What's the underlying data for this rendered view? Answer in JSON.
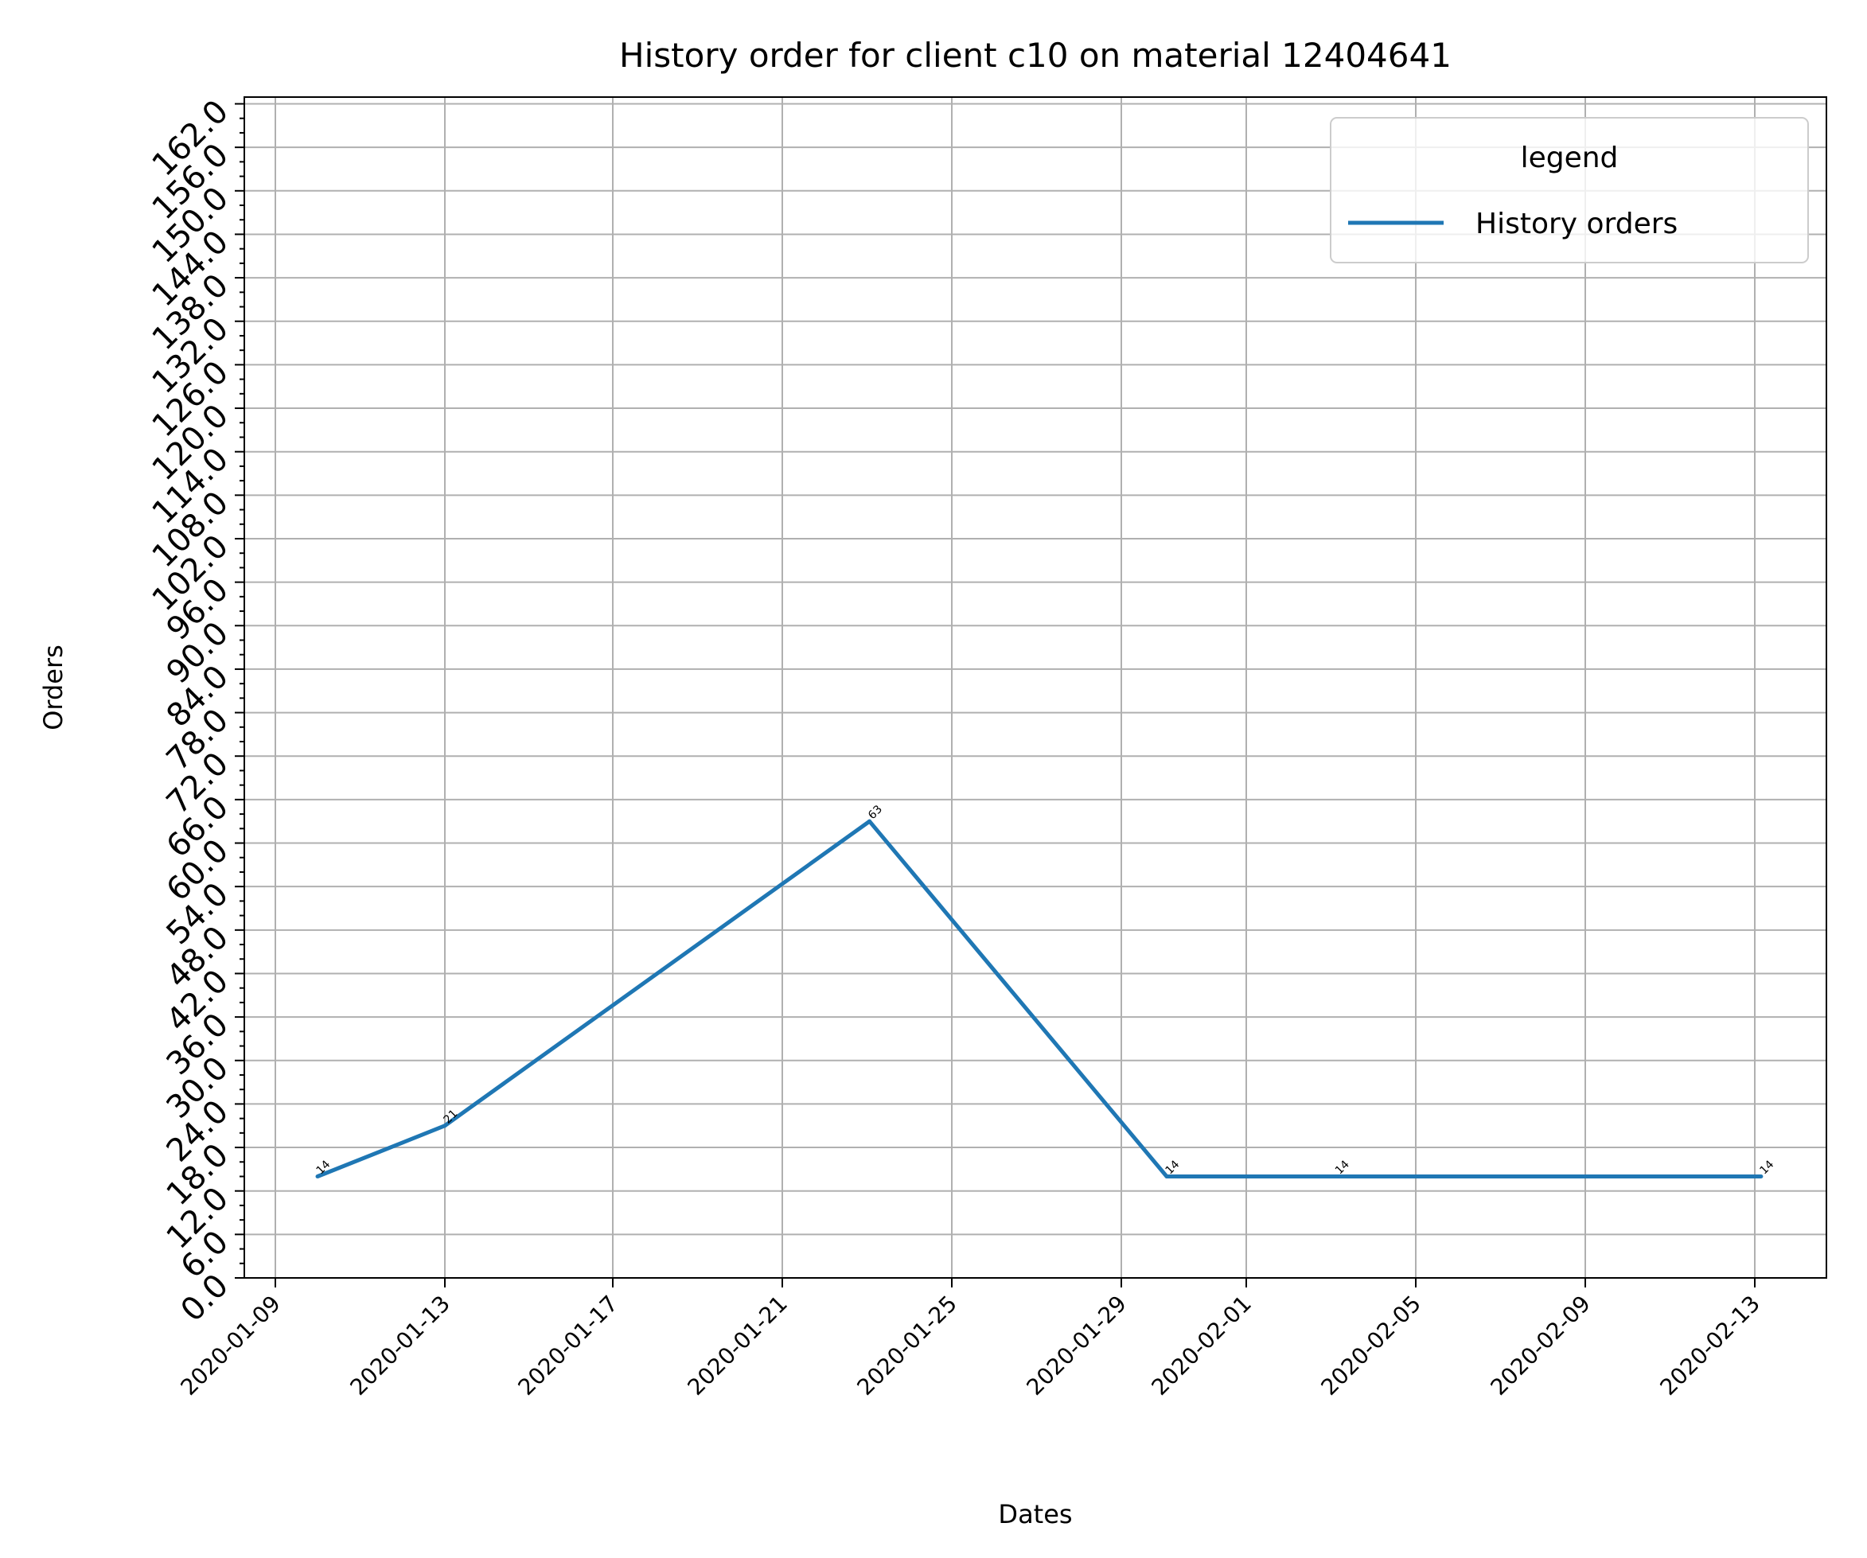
{
  "chart_data": {
    "type": "line",
    "title": "History order for client c10 on material 12404641",
    "xlabel": "Dates",
    "ylabel": "Orders",
    "x_ticks": [
      "2020-01-09",
      "2020-01-13",
      "2020-01-17",
      "2020-01-21",
      "2020-01-25",
      "2020-01-29",
      "2020-02-01",
      "2020-02-05",
      "2020-02-09",
      "2020-02-13"
    ],
    "y_ticks": [
      "0.0",
      "6.0",
      "12.0",
      "18.0",
      "24.0",
      "30.0",
      "36.0",
      "42.0",
      "48.0",
      "54.0",
      "60.0",
      "66.0",
      "72.0",
      "78.0",
      "84.0",
      "90.0",
      "96.0",
      "102.0",
      "108.0",
      "114.0",
      "120.0",
      "126.0",
      "132.0",
      "138.0",
      "144.0",
      "150.0",
      "156.0",
      "162.0"
    ],
    "ylim": [
      0,
      163
    ],
    "grid": true,
    "legend": {
      "title": "legend",
      "position": "upper right"
    },
    "series": [
      {
        "name": "History orders",
        "color": "#1f77b4",
        "x": [
          "2020-01-10",
          "2020-01-13",
          "2020-01-23",
          "2020-01-30",
          "2020-02-03",
          "2020-02-13"
        ],
        "y": [
          14,
          21,
          63,
          14,
          14,
          14
        ],
        "labels": [
          "14",
          "21",
          "63",
          "14",
          "14",
          "14"
        ]
      }
    ]
  }
}
